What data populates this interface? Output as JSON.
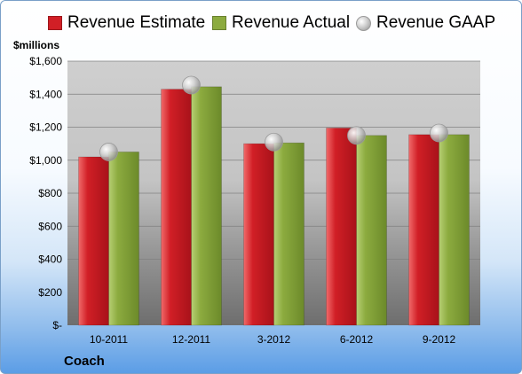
{
  "chart_data": {
    "type": "bar",
    "title": "",
    "unit_label": "$millions",
    "company": "Coach",
    "categories": [
      "10-2011",
      "12-2011",
      "3-2012",
      "6-2012",
      "9-2012"
    ],
    "series": [
      {
        "name": "Revenue Estimate",
        "values": [
          1020,
          1430,
          1100,
          1195,
          1155
        ],
        "color": "#d11f26"
      },
      {
        "name": "Revenue Actual",
        "values": [
          1050,
          1445,
          1105,
          1150,
          1155
        ],
        "color": "#8cab3f"
      }
    ],
    "markers": {
      "name": "Revenue GAAP",
      "values": [
        1050,
        1455,
        1110,
        1150,
        1165
      ]
    },
    "ylim": [
      0,
      1600
    ],
    "yticks": [
      0,
      200,
      400,
      600,
      800,
      1000,
      1200,
      1400,
      1600
    ],
    "ytick_labels": [
      "$-",
      "$200",
      "$400",
      "$600",
      "$800",
      "$1,000",
      "$1,200",
      "$1,400",
      "$1,600"
    ],
    "legend": "top",
    "grid": true
  }
}
